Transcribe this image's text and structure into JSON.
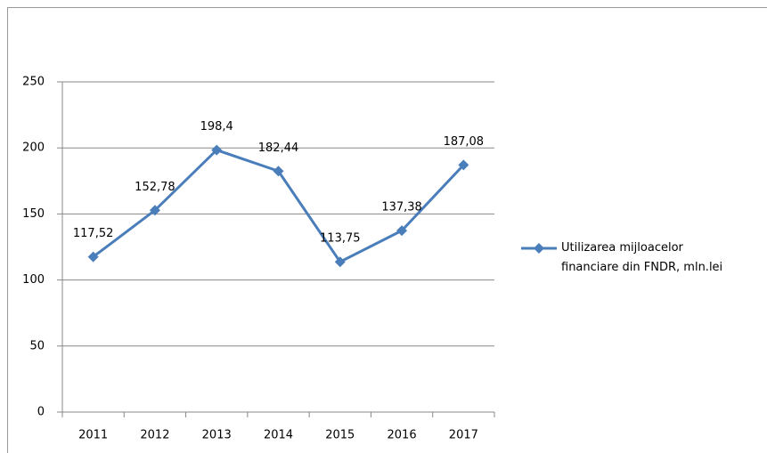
{
  "chart_data": {
    "type": "line",
    "categories": [
      "2011",
      "2012",
      "2013",
      "2014",
      "2015",
      "2016",
      "2017"
    ],
    "series": [
      {
        "name": "Utilizarea mijloacelor financiare din FNDR, mln.lei",
        "color": "#4a7ebb",
        "values": [
          117.52,
          152.78,
          198.4,
          182.44,
          113.75,
          137.38,
          187.08
        ],
        "value_labels": [
          "117,52",
          "152,78",
          "198,4",
          "182,44",
          "113,75",
          "137,38",
          "187,08"
        ]
      }
    ],
    "ylim": [
      0,
      250
    ],
    "yticks": [
      0,
      50,
      100,
      150,
      200,
      250
    ],
    "grid": true,
    "legend": "right"
  }
}
